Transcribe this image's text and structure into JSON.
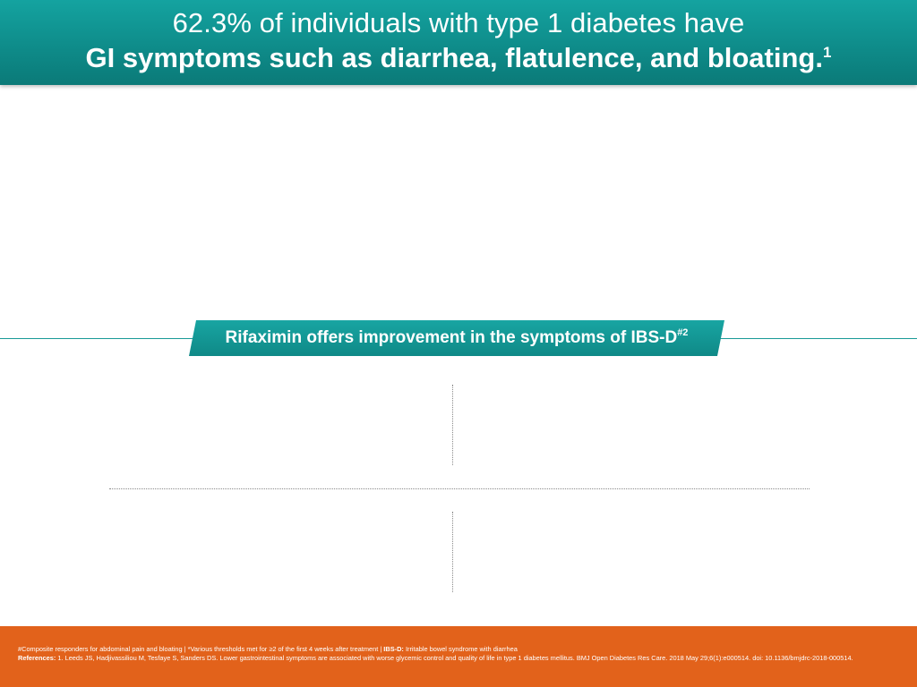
{
  "header": {
    "line1": "62.3% of individuals with type 1 diabetes have",
    "line2": "GI symptoms such as diarrhea, flatulence, and bloating.",
    "line2_sup": "1"
  },
  "banner": {
    "text": "Rifaximin offers improvement in the symptoms of IBS-D",
    "sup": "#2"
  },
  "footer": {
    "line1_text": "#Composite responders for abdominal pain and bloating | *Various thresholds met for ≥2 of the first 4 weeks after treatment | ",
    "line1_bold": "IBS-D:",
    "line1_tail": " Irritable bowel syndrome with diarrhea",
    "refs_label": "References:",
    "refs_text": " 1. Leeds JS, Hadjivassiliou M, Tesfaye S, Sanders DS. Lower gastrointestinal symptoms are associated with worse glycemic control and quality of life in type 1 diabetes mellitus. BMJ Open Diabetes Res Care. 2018 May 29;6(1):e000514. doi: 10.1136/bmjdrc-2018-000514."
  },
  "colors": {
    "header_teal": "#0e8a88",
    "footer_orange": "#e2621b"
  }
}
